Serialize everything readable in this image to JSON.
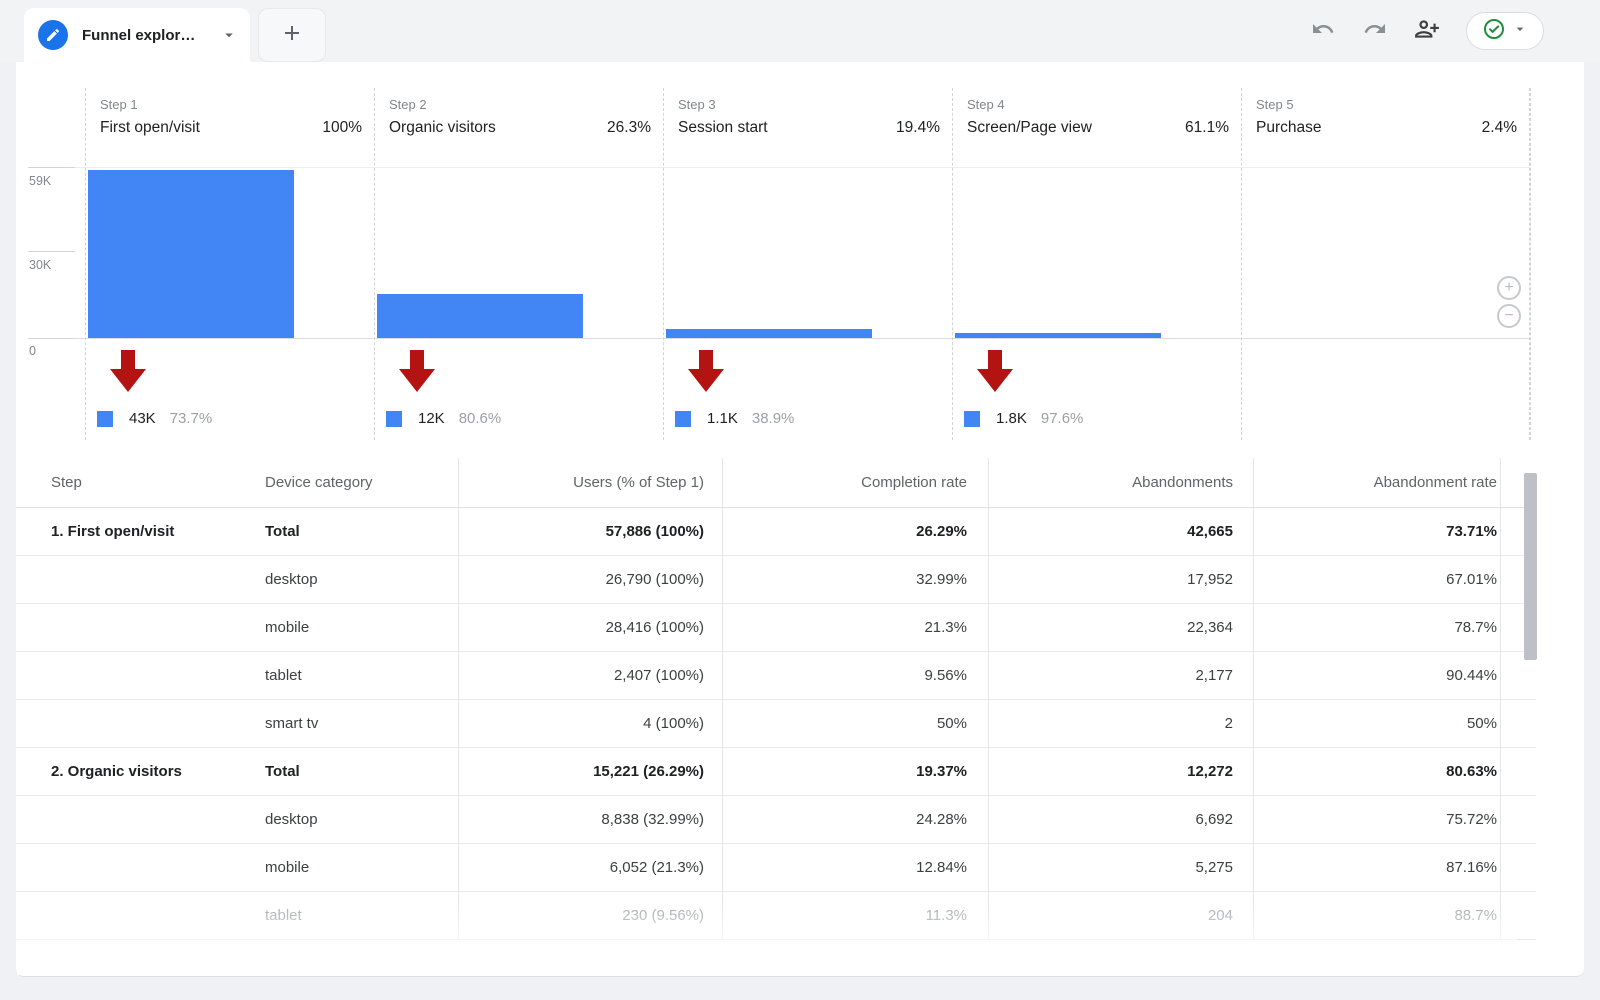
{
  "toolbar": {
    "tab_label": "Funnel explor…",
    "icons": [
      "edit",
      "chevron-down",
      "add",
      "undo",
      "redo",
      "person-add",
      "check-circle",
      "chevron-down"
    ],
    "accent_blue": "#1A73E8",
    "check_green": "#1E8E3E"
  },
  "chart_data": {
    "type": "funnel_bar",
    "title": "Funnel exploration",
    "y_axis_ticks": [
      "59K",
      "30K",
      "0"
    ],
    "y_max": 59000,
    "bar_color": "#4285F4",
    "arrow_color": "#B31412",
    "steps": [
      {
        "label": "Step 1",
        "name": "First open/visit",
        "rate": "100%",
        "users": 57886,
        "abandonment_count": "43K",
        "abandonment_rate": "73.7%"
      },
      {
        "label": "Step 2",
        "name": "Organic visitors",
        "rate": "26.3%",
        "users": 15221,
        "abandonment_count": "12K",
        "abandonment_rate": "80.6%"
      },
      {
        "label": "Step 3",
        "name": "Session start",
        "rate": "19.4%",
        "users": 2949,
        "abandonment_count": "1.1K",
        "abandonment_rate": "38.9%"
      },
      {
        "label": "Step 4",
        "name": "Screen/Page view",
        "rate": "61.1%",
        "users": 1802,
        "abandonment_count": "1.8K",
        "abandonment_rate": "97.6%"
      },
      {
        "label": "Step 5",
        "name": "Purchase",
        "rate": "2.4%",
        "users": 43,
        "abandonment_count": null,
        "abandonment_rate": null
      }
    ]
  },
  "zoom_controls": {
    "zoom_in": "+",
    "zoom_out": "−"
  },
  "table": {
    "headers": [
      "Step",
      "Device category",
      "Users (% of Step 1)",
      "Completion rate",
      "Abandonments",
      "Abandonment rate"
    ],
    "rows": [
      {
        "step": "1. First open/visit",
        "device": "Total",
        "users": "57,886 (100%)",
        "completion_rate": "26.29%",
        "abandonments": "42,665",
        "abandonment_rate": "73.71%",
        "bold": true
      },
      {
        "step": "",
        "device": "desktop",
        "users": "26,790 (100%)",
        "completion_rate": "32.99%",
        "abandonments": "17,952",
        "abandonment_rate": "67.01%"
      },
      {
        "step": "",
        "device": "mobile",
        "users": "28,416 (100%)",
        "completion_rate": "21.3%",
        "abandonments": "22,364",
        "abandonment_rate": "78.7%"
      },
      {
        "step": "",
        "device": "tablet",
        "users": "2,407 (100%)",
        "completion_rate": "9.56%",
        "abandonments": "2,177",
        "abandonment_rate": "90.44%"
      },
      {
        "step": "",
        "device": "smart tv",
        "users": "4 (100%)",
        "completion_rate": "50%",
        "abandonments": "2",
        "abandonment_rate": "50%"
      },
      {
        "step": "2. Organic visitors",
        "device": "Total",
        "users": "15,221 (26.29%)",
        "completion_rate": "19.37%",
        "abandonments": "12,272",
        "abandonment_rate": "80.63%",
        "bold": true
      },
      {
        "step": "",
        "device": "desktop",
        "users": "8,838 (32.99%)",
        "completion_rate": "24.28%",
        "abandonments": "6,692",
        "abandonment_rate": "75.72%"
      },
      {
        "step": "",
        "device": "mobile",
        "users": "6,052 (21.3%)",
        "completion_rate": "12.84%",
        "abandonments": "5,275",
        "abandonment_rate": "87.16%"
      },
      {
        "step": "",
        "device": "tablet",
        "users": "230 (9.56%)",
        "completion_rate": "11.3%",
        "abandonments": "204",
        "abandonment_rate": "88.7%",
        "faded": true
      }
    ]
  }
}
